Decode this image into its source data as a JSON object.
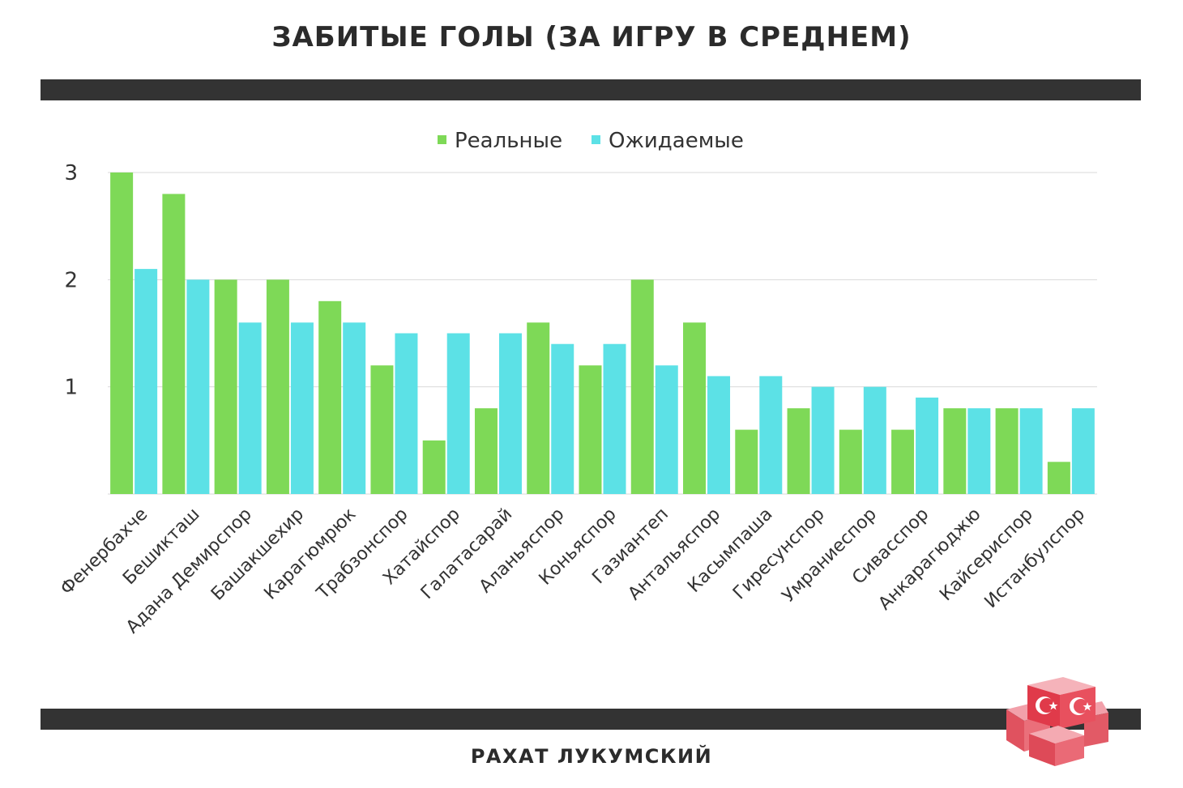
{
  "title": "ЗАБИТЫЕ ГОЛЫ (ЗА ИГРУ В СРЕДНЕМ)",
  "footer": "РАХАТ ЛУКУМСКИЙ",
  "colors": {
    "real": "#7ed957",
    "expected": "#5ce1e6",
    "band": "#333333",
    "grid": "#d9d9d9"
  },
  "chart_data": {
    "type": "bar",
    "categories": [
      "Фенербахче",
      "Бешикташ",
      "Адана Демирспор",
      "Башакшехир",
      "Карагюмрюк",
      "Трабзонспор",
      "Хатайспор",
      "Галатасарай",
      "Аланьяспор",
      "Коньяспор",
      "Газиантеп",
      "Антальяспор",
      "Касымпаша",
      "Гиресунспор",
      "Умраниеспор",
      "Сивасспор",
      "Анкарагюджю",
      "Кайсериспор",
      "Истанбулспор"
    ],
    "series": [
      {
        "name": "Реальные",
        "color": "#7ed957",
        "values": [
          3.0,
          2.8,
          2.0,
          2.0,
          1.8,
          1.2,
          0.5,
          0.8,
          1.6,
          1.2,
          2.0,
          1.6,
          0.6,
          0.8,
          0.6,
          0.6,
          0.8,
          0.8,
          0.3
        ]
      },
      {
        "name": "Ожидаемые",
        "color": "#5ce1e6",
        "values": [
          2.1,
          2.0,
          1.6,
          1.6,
          1.6,
          1.5,
          1.5,
          1.5,
          1.4,
          1.4,
          1.2,
          1.1,
          1.1,
          1.0,
          1.0,
          0.9,
          0.8,
          0.8,
          0.8
        ]
      }
    ],
    "yticks": [
      1,
      2,
      3
    ],
    "ylim": [
      0,
      3
    ],
    "grid": true,
    "legend": "top-center"
  }
}
